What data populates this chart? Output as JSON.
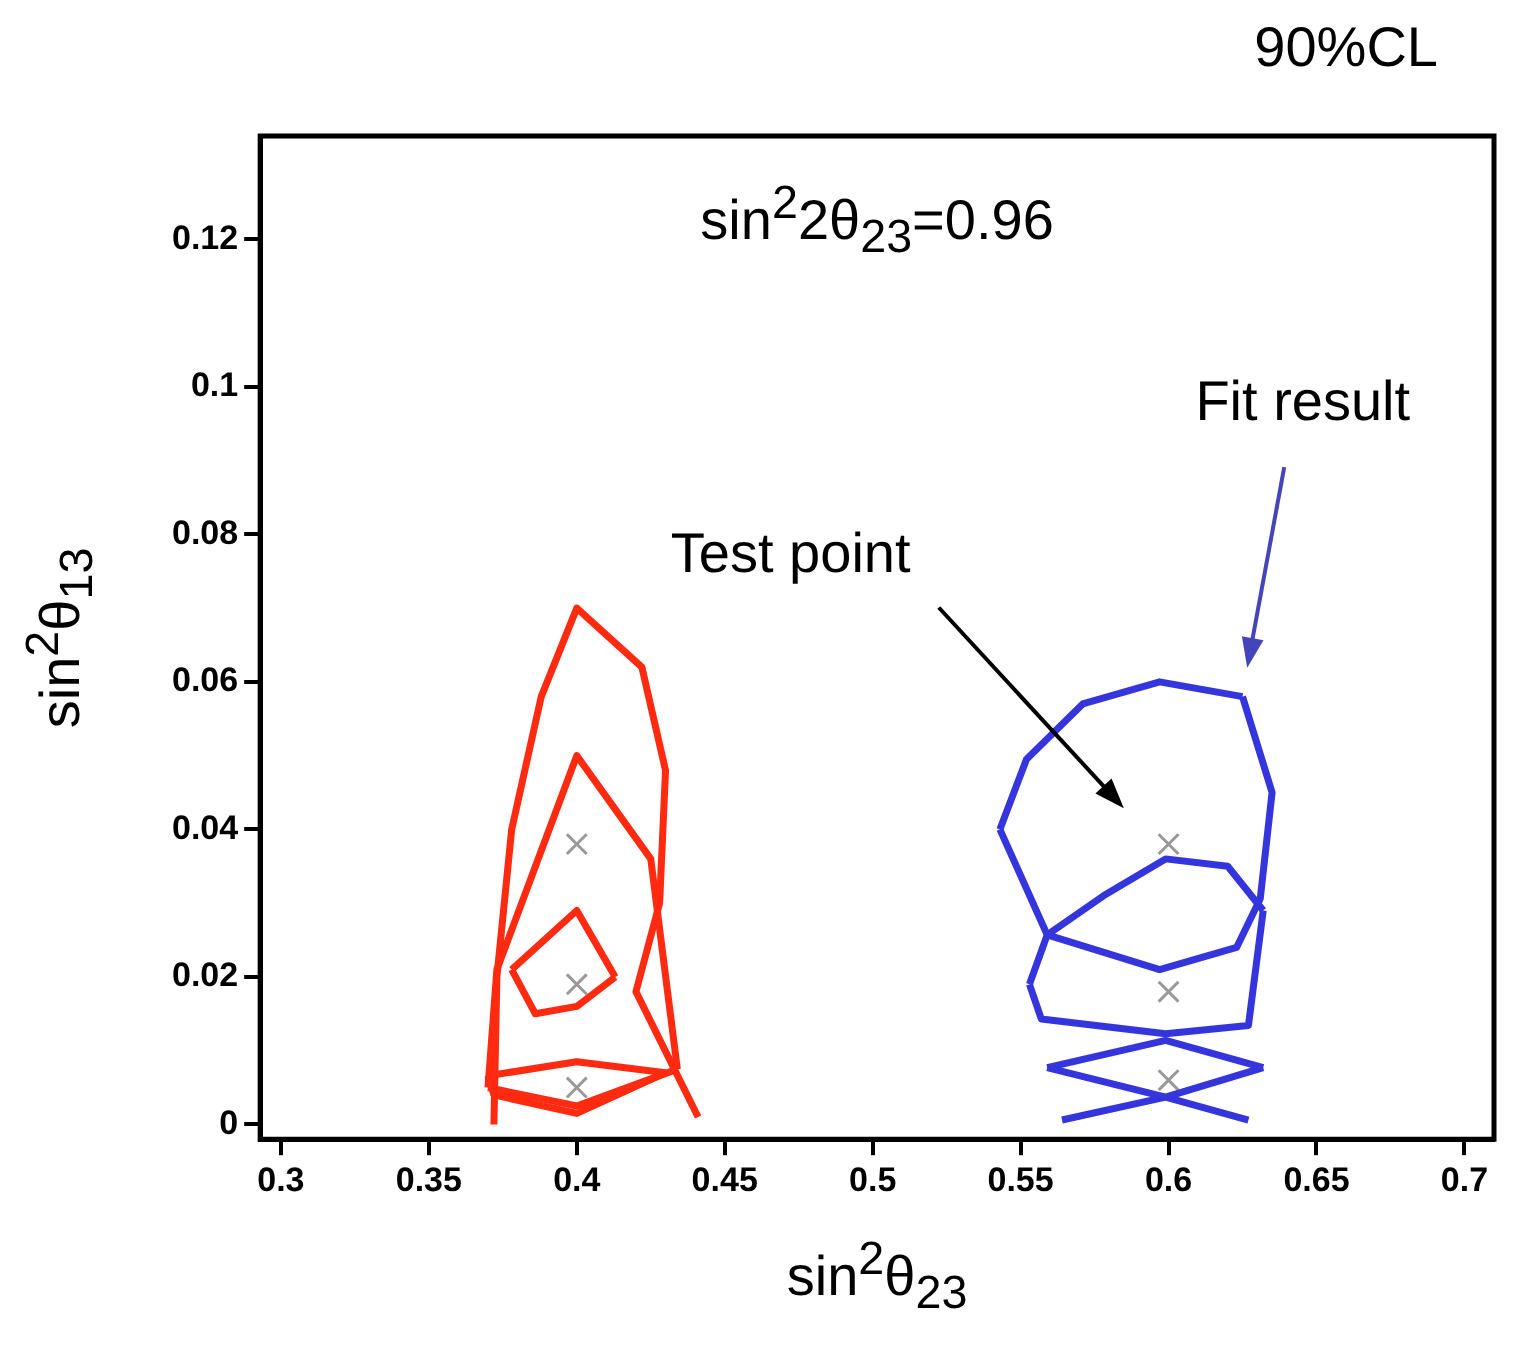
{
  "chart_data": {
    "type": "line",
    "title": "90%CL",
    "xlabel": "sin$^{2}$θ$_{23}$",
    "ylabel": "sin$^{2}$θ$_{13}$",
    "annotations": [
      "sin$^{2}$2θ$_{23}$=0.96",
      "Test point",
      "Fit result"
    ],
    "xlim": [
      0.293,
      0.71
    ],
    "ylim": [
      -0.002,
      0.134
    ],
    "xticks": [
      0.3,
      0.35,
      0.4,
      0.45,
      0.5,
      0.55,
      0.6,
      0.65,
      0.7
    ],
    "yticks": [
      0,
      0.02,
      0.04,
      0.06,
      0.08,
      0.1,
      0.12
    ],
    "grid": false,
    "series": [
      {
        "color": "#ff2a10",
        "x": [
          0.372,
          0.373,
          0.378,
          0.388,
          0.4,
          0.422,
          0.43,
          0.428,
          0.42,
          0.441
        ],
        "values": [
          0,
          0.02,
          0.04,
          0.058,
          0.07,
          0.062,
          0.048,
          0.03,
          0.018,
          0.001
        ]
      },
      {
        "color": "#ff2a10",
        "x": [
          0.37,
          0.373,
          0.4,
          0.425,
          0.434
        ],
        "values": [
          0.005,
          0.021,
          0.05,
          0.036,
          0.0075
        ]
      },
      {
        "color": "#ff2a10",
        "x": [
          0.37,
          0.4,
          0.434
        ],
        "values": [
          0.005,
          0.0025,
          0.0075
        ]
      },
      {
        "color": "#ff2a10",
        "x": [
          0.378,
          0.4,
          0.413
        ],
        "values": [
          0.021,
          0.029,
          0.02
        ]
      },
      {
        "color": "#ff2a10",
        "x": [
          0.378,
          0.386,
          0.4,
          0.413
        ],
        "values": [
          0.021,
          0.015,
          0.016,
          0.02
        ]
      },
      {
        "color": "#ff2a10",
        "x": [
          0.37,
          0.4,
          0.43
        ],
        "values": [
          0.0066,
          0.0085,
          0.007
        ]
      },
      {
        "color": "#ff2a10",
        "x": [
          0.37,
          0.372,
          0.4,
          0.43
        ],
        "values": [
          0.0066,
          0.004,
          0.0015,
          0.007
        ]
      },
      {
        "color": "#3535dd",
        "x": [
          0.543,
          0.552,
          0.571,
          0.597,
          0.625
        ],
        "values": [
          0.04,
          0.0495,
          0.057,
          0.06,
          0.058
        ]
      },
      {
        "color": "#3535dd",
        "x": [
          0.625,
          0.635,
          0.631,
          0.623,
          0.597,
          0.559,
          0.543
        ],
        "values": [
          0.058,
          0.045,
          0.0306,
          0.024,
          0.021,
          0.0257,
          0.04
        ]
      },
      {
        "color": "#3535dd",
        "x": [
          0.553,
          0.559,
          0.578,
          0.599,
          0.62,
          0.632
        ],
        "values": [
          0.019,
          0.0257,
          0.031,
          0.036,
          0.035,
          0.029
        ]
      },
      {
        "color": "#3535dd",
        "x": [
          0.553,
          0.557,
          0.599,
          0.627,
          0.632
        ],
        "values": [
          0.019,
          0.0143,
          0.0123,
          0.0134,
          0.029
        ]
      },
      {
        "color": "#3535dd",
        "x": [
          0.559,
          0.599,
          0.632
        ],
        "values": [
          0.0077,
          0.0114,
          0.0077
        ]
      },
      {
        "color": "#3535dd",
        "x": [
          0.559,
          0.599,
          0.632
        ],
        "values": [
          0.0077,
          0.0037,
          0.0077
        ]
      },
      {
        "color": "#3535dd",
        "x": [
          0.564,
          0.599,
          0.627
        ],
        "values": [
          0.0006,
          0.0037,
          0.0006
        ]
      },
      {
        "type": "scatter",
        "color": "#999999",
        "marker": "cross",
        "x": [
          0.4,
          0.4,
          0.4,
          0.6,
          0.6,
          0.6
        ],
        "values": [
          0.038,
          0.019,
          0.005,
          0.038,
          0.018,
          0.006
        ]
      }
    ]
  }
}
